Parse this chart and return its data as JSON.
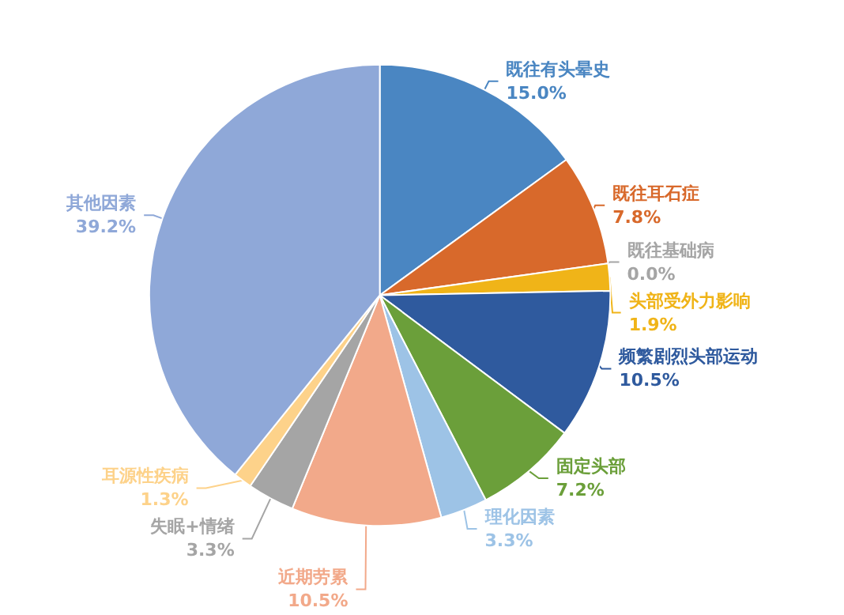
{
  "chart_data": {
    "type": "pie",
    "categories": [
      "既往有头晕史",
      "既往耳石症",
      "既往基础病",
      "头部受外力影响",
      "频繁剧烈头部运动",
      "固定头部",
      "理化因素",
      "近期劳累",
      "失眠+情绪",
      "耳源性疾病",
      "其他因素"
    ],
    "values": [
      15.0,
      7.8,
      0.0,
      1.9,
      10.5,
      7.2,
      3.3,
      10.5,
      3.3,
      1.3,
      39.2
    ],
    "value_labels": [
      "15.0%",
      "7.8%",
      "0.0%",
      "1.9%",
      "10.5%",
      "7.2%",
      "3.3%",
      "10.5%",
      "3.3%",
      "1.3%",
      "39.2%"
    ],
    "colors": [
      "#4a86c2",
      "#d8692b",
      "#a5a5a5",
      "#f0b418",
      "#2f5a9e",
      "#6b9f3a",
      "#9dc3e6",
      "#f2a98a",
      "#a5a5a5",
      "#fdd28a",
      "#8fa8d8"
    ]
  }
}
